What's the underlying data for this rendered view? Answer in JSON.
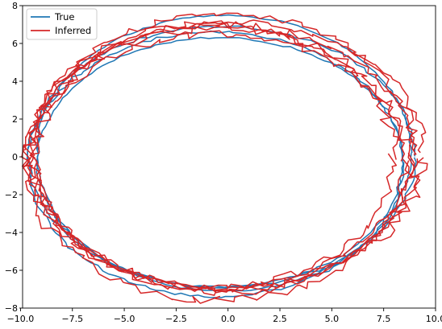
{
  "chart_data": {
    "type": "line",
    "title": "",
    "xlabel": "",
    "ylabel": "",
    "xlim": [
      -9.9,
      10.0
    ],
    "ylim": [
      -8.0,
      8.0
    ],
    "x_ticks": [
      -10.0,
      -7.5,
      -5.0,
      -2.5,
      0.0,
      2.5,
      5.0,
      7.5,
      10.0
    ],
    "x_tick_labels": [
      "−10.0",
      "−7.5",
      "−5.0",
      "−2.5",
      "0.0",
      "2.5",
      "5.0",
      "7.5",
      "10.0"
    ],
    "y_ticks": [
      -8,
      -6,
      -4,
      -2,
      0,
      2,
      4,
      6,
      8
    ],
    "y_tick_labels": [
      "−8",
      "−6",
      "−4",
      "−2",
      "0",
      "2",
      "4",
      "6",
      "8"
    ],
    "grid": false,
    "legend_position": "upper-left",
    "series": [
      {
        "name": "True",
        "color": "#1f77b4",
        "ellipses": [
          {
            "cx": -0.4,
            "cy": -0.3,
            "rx": 8.8,
            "ry": 6.6,
            "wobble": 0.06
          },
          {
            "cx": -0.3,
            "cy": 0.0,
            "rx": 9.3,
            "ry": 6.9,
            "wobble": 0.07
          },
          {
            "cx": -0.2,
            "cy": 0.2,
            "rx": 9.0,
            "ry": 7.3,
            "wobble": 0.05
          },
          {
            "cx": -0.6,
            "cy": -0.4,
            "rx": 9.0,
            "ry": 7.0,
            "wobble": 0.08
          }
        ]
      },
      {
        "name": "Inferred",
        "color": "#d62728",
        "ellipses": [
          {
            "cx": -0.4,
            "cy": -0.2,
            "rx": 8.9,
            "ry": 6.7,
            "wobble": 0.18
          },
          {
            "cx": -0.3,
            "cy": 0.0,
            "rx": 9.4,
            "ry": 7.0,
            "wobble": 0.2
          },
          {
            "cx": -0.2,
            "cy": 0.2,
            "rx": 9.1,
            "ry": 7.4,
            "wobble": 0.17
          },
          {
            "cx": -0.5,
            "cy": -0.4,
            "rx": 9.2,
            "ry": 7.2,
            "wobble": 0.22
          },
          {
            "cx": -0.1,
            "cy": 0.1,
            "rx": 9.5,
            "ry": 7.1,
            "wobble": 0.19
          },
          {
            "cx": -0.7,
            "cy": 0.0,
            "rx": 8.7,
            "ry": 6.9,
            "wobble": 0.21
          }
        ]
      }
    ]
  }
}
